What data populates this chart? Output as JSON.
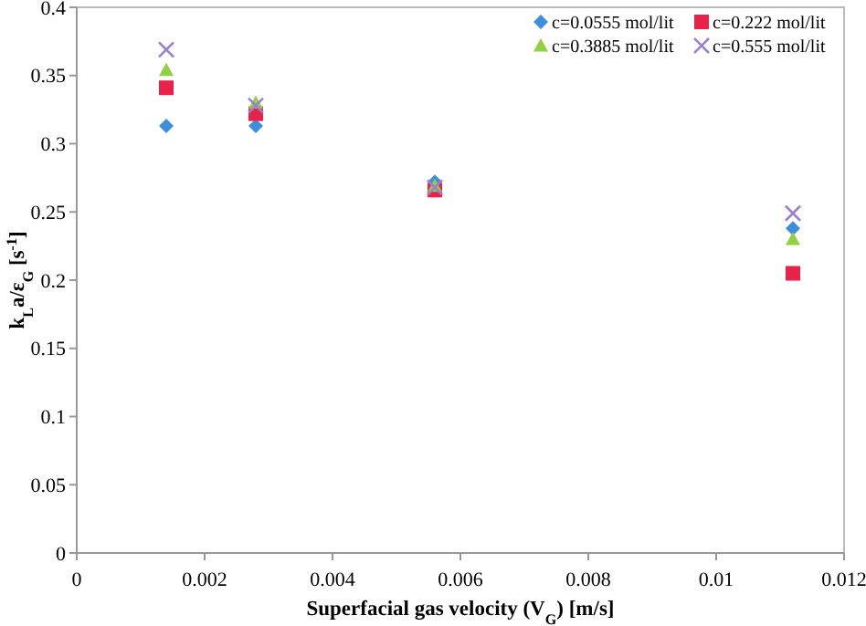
{
  "chart_data": {
    "type": "scatter",
    "xlabel": "Superfacial gas velocity (V$_{G}$) [m/s]",
    "ylabel": "k$_{L}$a/ε$_{G}$ [s$^{-1}$]",
    "x": [
      0.0014,
      0.0028,
      0.0056,
      0.0112
    ],
    "series": [
      {
        "name": "c=0.0555 mol/lit",
        "color": "#3c8fdc",
        "marker": "diamond",
        "values": [
          0.313,
          0.313,
          0.272,
          0.238
        ]
      },
      {
        "name": "c=0.222 mol/lit",
        "color": "#e8234a",
        "marker": "square",
        "values": [
          0.341,
          0.322,
          0.266,
          0.205
        ]
      },
      {
        "name": "c=0.3885 mol/lit",
        "color": "#8fd13f",
        "marker": "triangle",
        "values": [
          0.354,
          0.33,
          0.269,
          0.23
        ]
      },
      {
        "name": "c=0.555 mol/lit",
        "color": "#9b7fd6",
        "marker": "cross",
        "values": [
          0.369,
          0.328,
          0.268,
          0.249
        ]
      }
    ],
    "xlim": [
      0,
      0.012
    ],
    "xticks": [
      0,
      0.002,
      0.004,
      0.006,
      0.008,
      0.01,
      0.012
    ],
    "ylim": [
      0,
      0.4
    ],
    "yticks": [
      0,
      0.05,
      0.1,
      0.15,
      0.2,
      0.25,
      0.3,
      0.35,
      0.4
    ],
    "grid": false,
    "legend": "top right"
  }
}
